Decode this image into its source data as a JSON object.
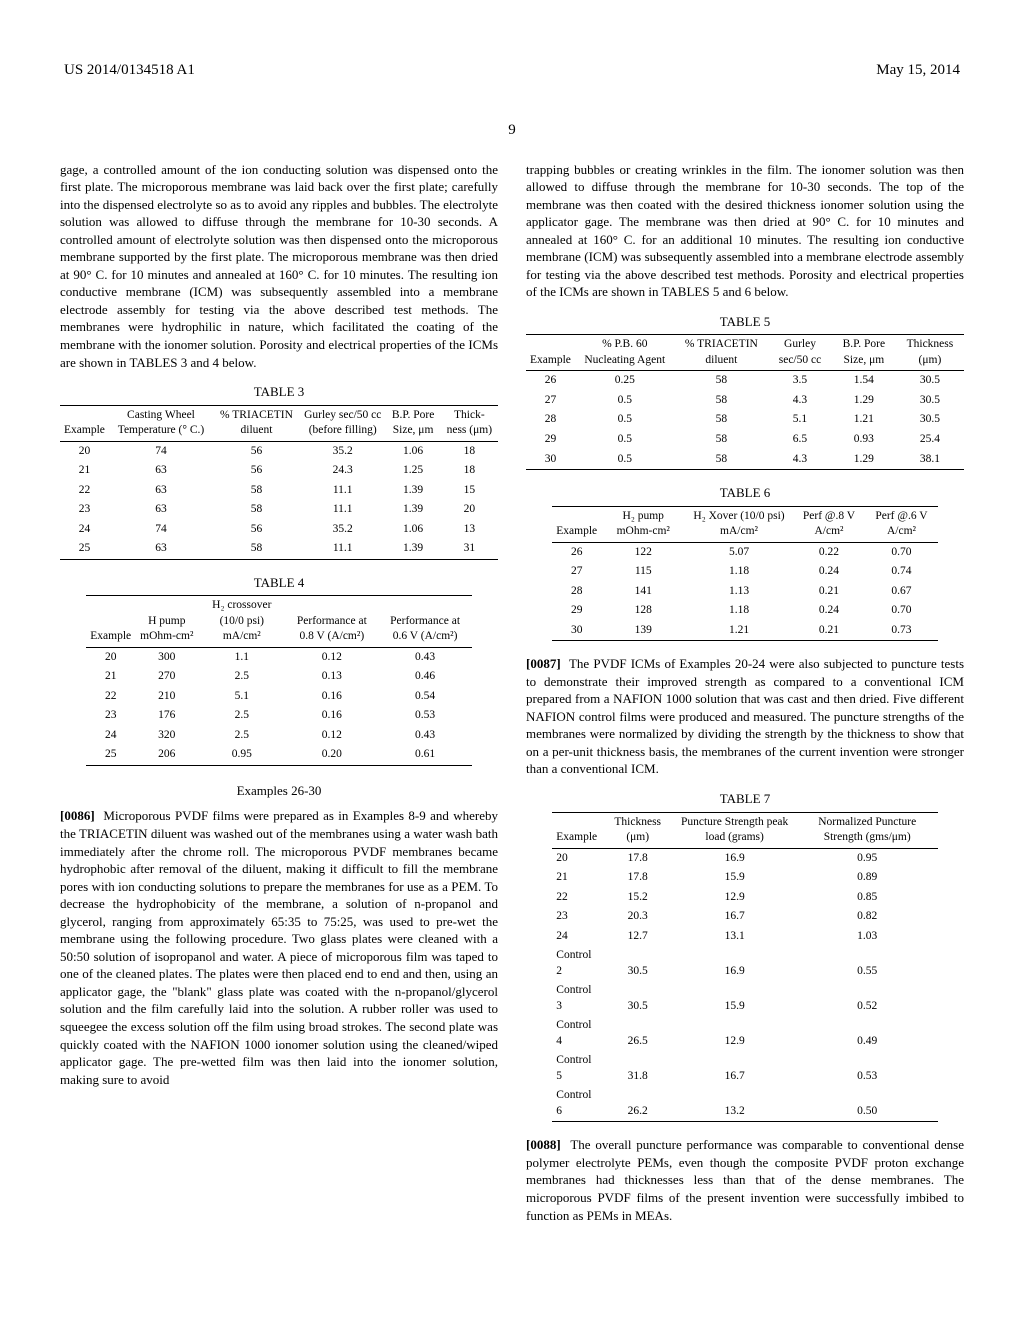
{
  "header": {
    "pub_number": "US 2014/0134518 A1",
    "pub_date": "May 15, 2014",
    "page_number": "9"
  },
  "left_column": {
    "prose1": "gage, a controlled amount of the ion conducting solution was dispensed onto the first plate. The microporous membrane was laid back over the first plate; carefully into the dispensed electrolyte so as to avoid any ripples and bubbles. The electrolyte solution was allowed to diffuse through the membrane for 10-30 seconds. A controlled amount of electrolyte solution was then dispensed onto the microporous membrane supported by the first plate. The microporous membrane was then dried at 90° C. for 10 minutes and annealed at 160° C. for 10 minutes. The resulting ion conductive membrane (ICM) was subsequently assembled into a membrane electrode assembly for testing via the above described test methods. The membranes were hydrophilic in nature, which facilitated the coating of the membrane with the ionomer solution. Porosity and electrical properties of the ICMs are shown in TABLES 3 and 4 below.",
    "table3": {
      "caption": "TABLE 3",
      "columns": [
        "Example",
        "Casting Wheel Temperature (° C.)",
        "% TRIACETIN diluent",
        "Gurley sec/50 cc (before filling)",
        "B.P. Pore Size, μm",
        "Thick- ness (μm)"
      ],
      "rows": [
        [
          "20",
          "74",
          "56",
          "35.2",
          "1.06",
          "18"
        ],
        [
          "21",
          "63",
          "56",
          "24.3",
          "1.25",
          "18"
        ],
        [
          "22",
          "63",
          "58",
          "11.1",
          "1.39",
          "15"
        ],
        [
          "23",
          "63",
          "58",
          "11.1",
          "1.39",
          "20"
        ],
        [
          "24",
          "74",
          "56",
          "35.2",
          "1.06",
          "13"
        ],
        [
          "25",
          "63",
          "58",
          "11.1",
          "1.39",
          "31"
        ]
      ]
    },
    "table4": {
      "caption": "TABLE 4",
      "columns": [
        "Example",
        "H pump mOhm-cm²",
        "H₂ crossover (10/0 psi) mA/cm²",
        "Performance at 0.8 V (A/cm²)",
        "Performance at 0.6 V (A/cm²)"
      ],
      "rows": [
        [
          "20",
          "300",
          "1.1",
          "0.12",
          "0.43"
        ],
        [
          "21",
          "270",
          "2.5",
          "0.13",
          "0.46"
        ],
        [
          "22",
          "210",
          "5.1",
          "0.16",
          "0.54"
        ],
        [
          "23",
          "176",
          "2.5",
          "0.16",
          "0.53"
        ],
        [
          "24",
          "320",
          "2.5",
          "0.12",
          "0.43"
        ],
        [
          "25",
          "206",
          "0.95",
          "0.20",
          "0.61"
        ]
      ]
    },
    "section_title": "Examples 26-30",
    "para86_num": "[0086]",
    "para86": "Microporous PVDF films were prepared as in Examples 8-9 and whereby the TRIACETIN diluent was washed out of the membranes using a water wash bath immediately after the chrome roll. The microporous PVDF membranes became hydrophobic after removal of the diluent, making it difficult to fill the membrane pores with ion conducting solutions to prepare the membranes for use as a PEM. To decrease the hydrophobicity of the membrane, a solution of n-propanol and glycerol, ranging from approximately 65:35 to 75:25, was used to pre-wet the membrane using the following procedure. Two glass plates were cleaned with a 50:50 solution of isopropanol and water. A piece of microporous film was taped to one of the cleaned plates. The plates were then placed end to end and then, using an applicator gage, the \"blank\" glass plate was coated with the n-propanol/glycerol solution and the film carefully laid into the solution. A rubber roller was used to squeegee the excess solution off the film using broad strokes. The second plate was quickly coated with the NAFION 1000 ionomer solution using the cleaned/wiped applicator gage. The pre-wetted film was then laid into the ionomer solution, making sure to avoid"
  },
  "right_column": {
    "prose1": "trapping bubbles or creating wrinkles in the film. The ionomer solution was then allowed to diffuse through the membrane for 10-30 seconds. The top of the membrane was then coated with the desired thickness ionomer solution using the applicator gage. The membrane was then dried at 90° C. for 10 minutes and annealed at 160° C. for an additional 10 minutes. The resulting ion conductive membrane (ICM) was subsequently assembled into a membrane electrode assembly for testing via the above described test methods. Porosity and electrical properties of the ICMs are shown in TABLES 5 and 6 below.",
    "table5": {
      "caption": "TABLE 5",
      "columns": [
        "Example",
        "% P.B. 60 Nucleating Agent",
        "% TRIACETIN diluent",
        "Gurley sec/50 cc",
        "B.P. Pore Size, μm",
        "Thickness (μm)"
      ],
      "rows": [
        [
          "26",
          "0.25",
          "58",
          "3.5",
          "1.54",
          "30.5"
        ],
        [
          "27",
          "0.5",
          "58",
          "4.3",
          "1.29",
          "30.5"
        ],
        [
          "28",
          "0.5",
          "58",
          "5.1",
          "1.21",
          "30.5"
        ],
        [
          "29",
          "0.5",
          "58",
          "6.5",
          "0.93",
          "25.4"
        ],
        [
          "30",
          "0.5",
          "58",
          "4.3",
          "1.29",
          "38.1"
        ]
      ]
    },
    "table6": {
      "caption": "TABLE 6",
      "columns": [
        "Example",
        "H₂ pump mOhm-cm²",
        "H₂ Xover (10/0 psi) mA/cm²",
        "Perf @.8 V A/cm²",
        "Perf @.6 V A/cm²"
      ],
      "rows": [
        [
          "26",
          "122",
          "5.07",
          "0.22",
          "0.70"
        ],
        [
          "27",
          "115",
          "1.18",
          "0.24",
          "0.74"
        ],
        [
          "28",
          "141",
          "1.13",
          "0.21",
          "0.67"
        ],
        [
          "29",
          "128",
          "1.18",
          "0.24",
          "0.70"
        ],
        [
          "30",
          "139",
          "1.21",
          "0.21",
          "0.73"
        ]
      ]
    },
    "para87_num": "[0087]",
    "para87": "The PVDF ICMs of Examples 20-24 were also subjected to puncture tests to demonstrate their improved strength as compared to a conventional ICM prepared from a NAFION 1000 solution that was cast and then dried. Five different NAFION control films were produced and measured. The puncture strengths of the membranes were normalized by dividing the strength by the thickness to show that on a per-unit thickness basis, the membranes of the current invention were stronger than a conventional ICM.",
    "table7": {
      "caption": "TABLE 7",
      "columns": [
        "Example",
        "Thickness (μm)",
        "Puncture Strength peak load (grams)",
        "Normalized Puncture Strength (gms/μm)"
      ],
      "rows": [
        [
          "20",
          "17.8",
          "16.9",
          "0.95"
        ],
        [
          "21",
          "17.8",
          "15.9",
          "0.89"
        ],
        [
          "22",
          "15.2",
          "12.9",
          "0.85"
        ],
        [
          "23",
          "20.3",
          "16.7",
          "0.82"
        ],
        [
          "24",
          "12.7",
          "13.1",
          "1.03"
        ],
        [
          "Control 2",
          "30.5",
          "16.9",
          "0.55"
        ],
        [
          "Control 3",
          "30.5",
          "15.9",
          "0.52"
        ],
        [
          "Control 4",
          "26.5",
          "12.9",
          "0.49"
        ],
        [
          "Control 5",
          "31.8",
          "16.7",
          "0.53"
        ],
        [
          "Control 6",
          "26.2",
          "13.2",
          "0.50"
        ]
      ]
    },
    "para88_num": "[0088]",
    "para88": "The overall puncture performance was comparable to conventional dense polymer electrolyte PEMs, even though the composite PVDF proton exchange membranes had thicknesses less than that of the dense membranes. The microporous PVDF films of the present invention were successfully imbibed to function as PEMs in MEAs."
  }
}
